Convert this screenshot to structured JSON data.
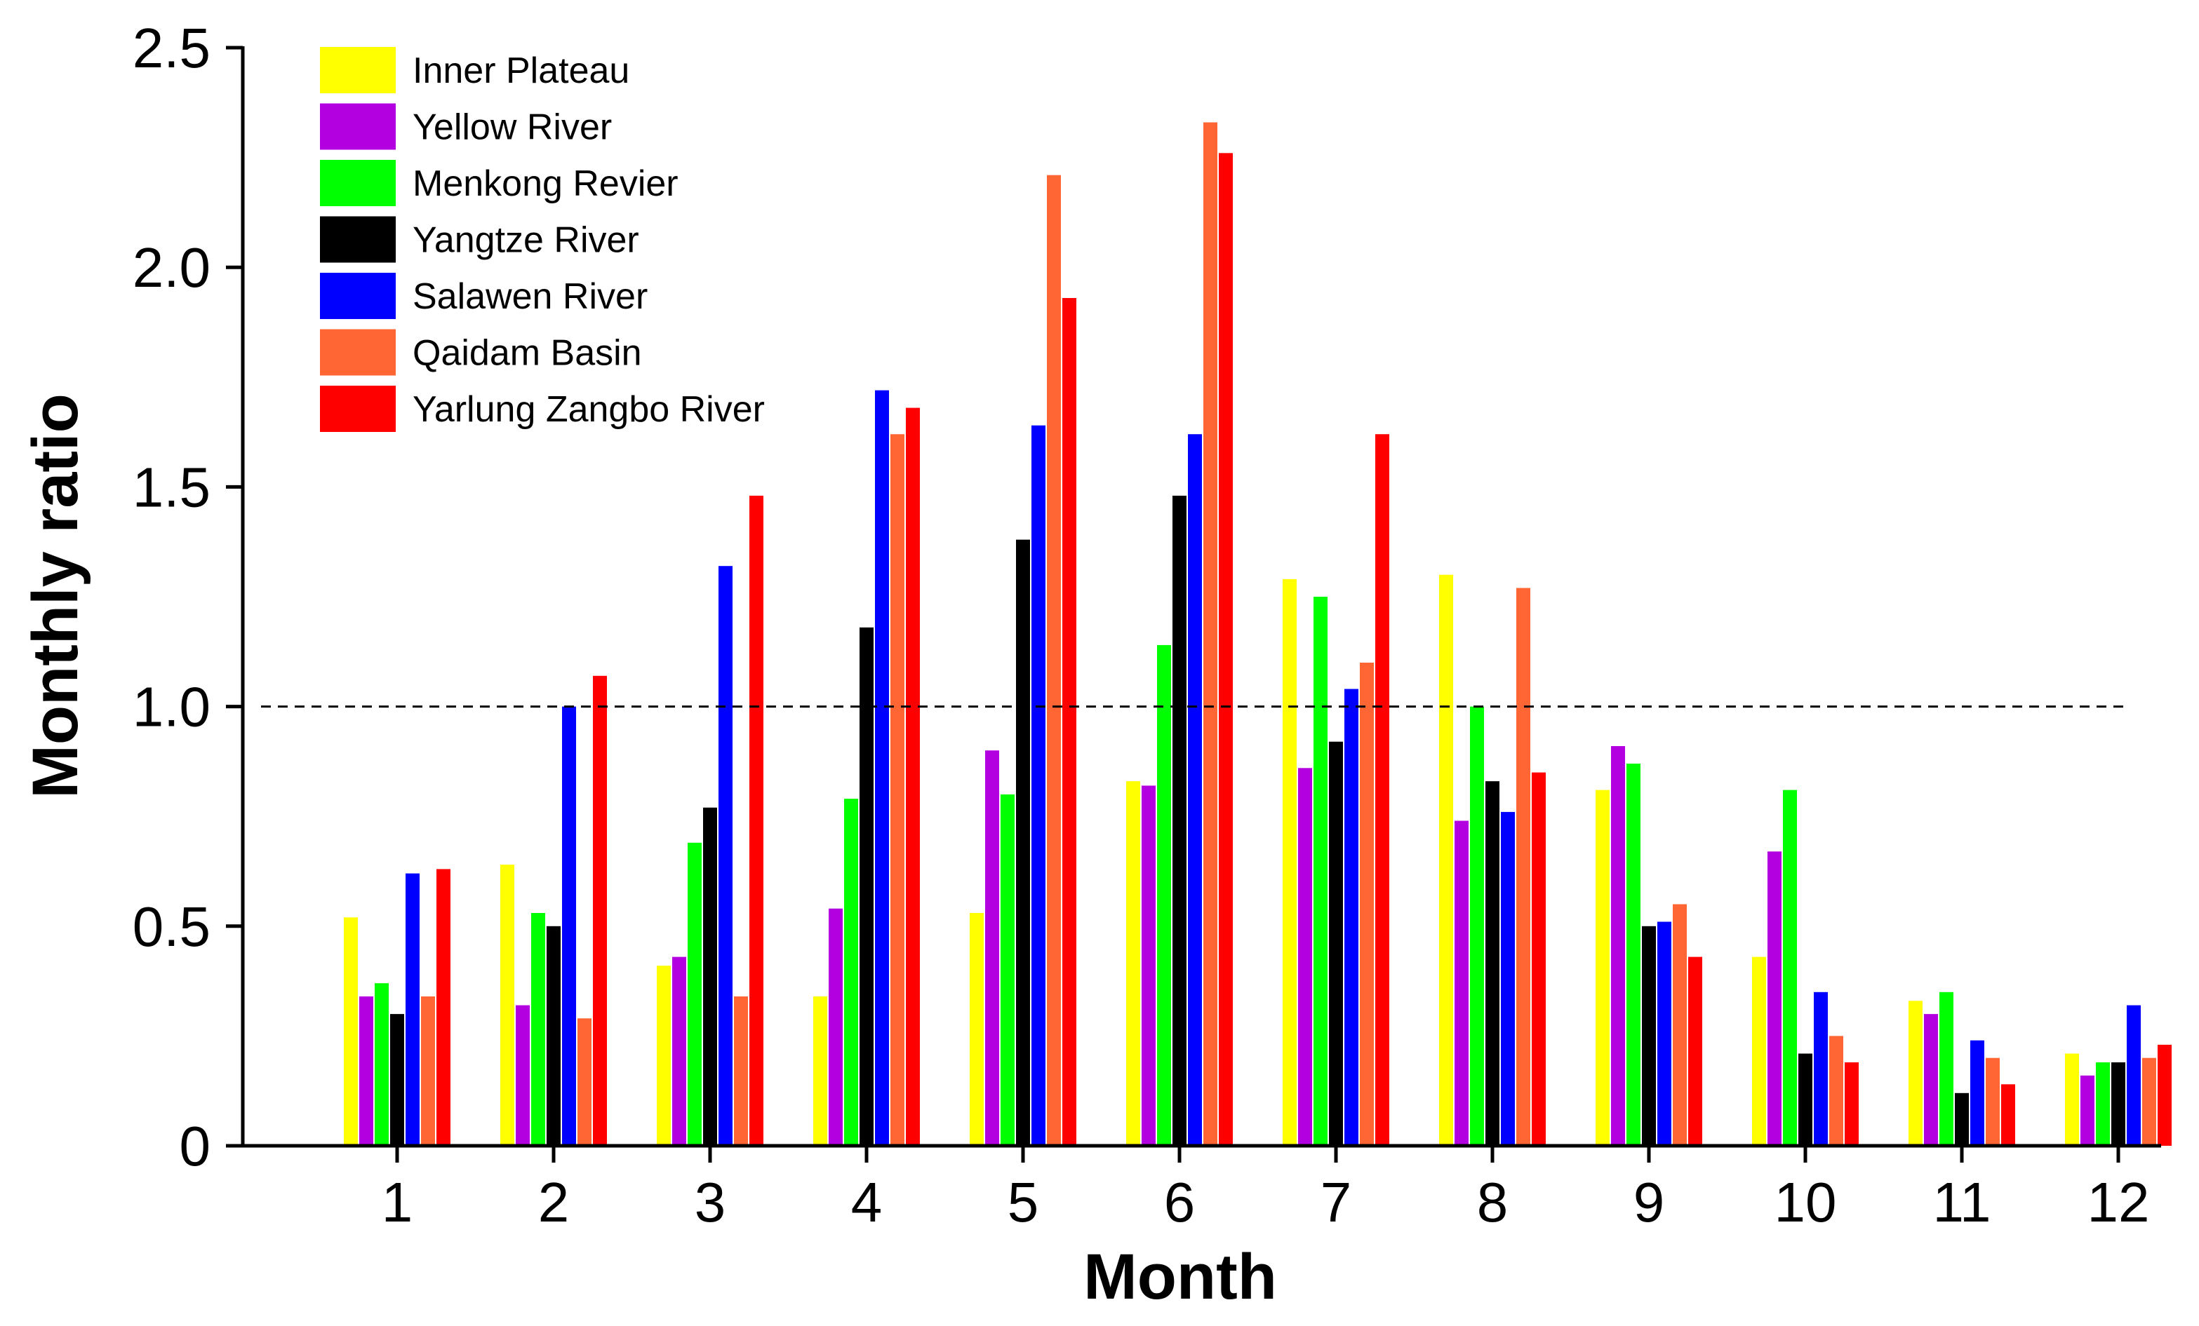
{
  "chart_data": {
    "type": "bar",
    "title": "",
    "xlabel": "Month",
    "ylabel": "Monthly ratio",
    "ylim": [
      0,
      2.5
    ],
    "yticks": [
      0,
      0.5,
      1.0,
      1.5,
      2.0,
      2.5
    ],
    "ytick_labels": [
      "0",
      "0.5",
      "1.0",
      "1.5",
      "2.0",
      "2.5"
    ],
    "categories": [
      "1",
      "2",
      "3",
      "4",
      "5",
      "6",
      "7",
      "8",
      "9",
      "10",
      "11",
      "12"
    ],
    "reference_line": {
      "y": 1.0,
      "style": "dashed",
      "color": "#000000"
    },
    "legend": {
      "position": "top-left"
    },
    "grid": false,
    "series": [
      {
        "name": "Inner Plateau",
        "color": "#FFFF00",
        "values": [
          0.52,
          0.64,
          0.41,
          0.34,
          0.53,
          0.83,
          1.29,
          1.3,
          0.81,
          0.43,
          0.33,
          0.21
        ]
      },
      {
        "name": "Yellow River",
        "color": "#B200E0",
        "values": [
          0.34,
          0.32,
          0.43,
          0.54,
          0.9,
          0.82,
          0.86,
          0.74,
          0.91,
          0.67,
          0.3,
          0.16
        ]
      },
      {
        "name": "Menkong Revier",
        "color": "#00FF00",
        "values": [
          0.37,
          0.53,
          0.69,
          0.79,
          0.8,
          1.14,
          1.25,
          1.0,
          0.87,
          0.81,
          0.35,
          0.19
        ]
      },
      {
        "name": "Yangtze River",
        "color": "#000000",
        "values": [
          0.3,
          0.5,
          0.77,
          1.18,
          1.38,
          1.48,
          0.92,
          0.83,
          0.5,
          0.21,
          0.12,
          0.19
        ]
      },
      {
        "name": "Salawen River",
        "color": "#0000FF",
        "values": [
          0.62,
          1.0,
          1.32,
          1.72,
          1.64,
          1.62,
          1.04,
          0.76,
          0.51,
          0.35,
          0.24,
          0.32
        ]
      },
      {
        "name": "Qaidam Basin",
        "color": "#FF6633",
        "values": [
          0.34,
          0.29,
          0.34,
          1.62,
          2.21,
          2.33,
          1.1,
          1.27,
          0.55,
          0.25,
          0.2,
          0.2
        ]
      },
      {
        "name": "Yarlung Zangbo River",
        "color": "#FF0000",
        "values": [
          0.63,
          1.07,
          1.48,
          1.68,
          1.93,
          2.26,
          1.62,
          0.85,
          0.43,
          0.19,
          0.14,
          0.23
        ]
      }
    ]
  }
}
